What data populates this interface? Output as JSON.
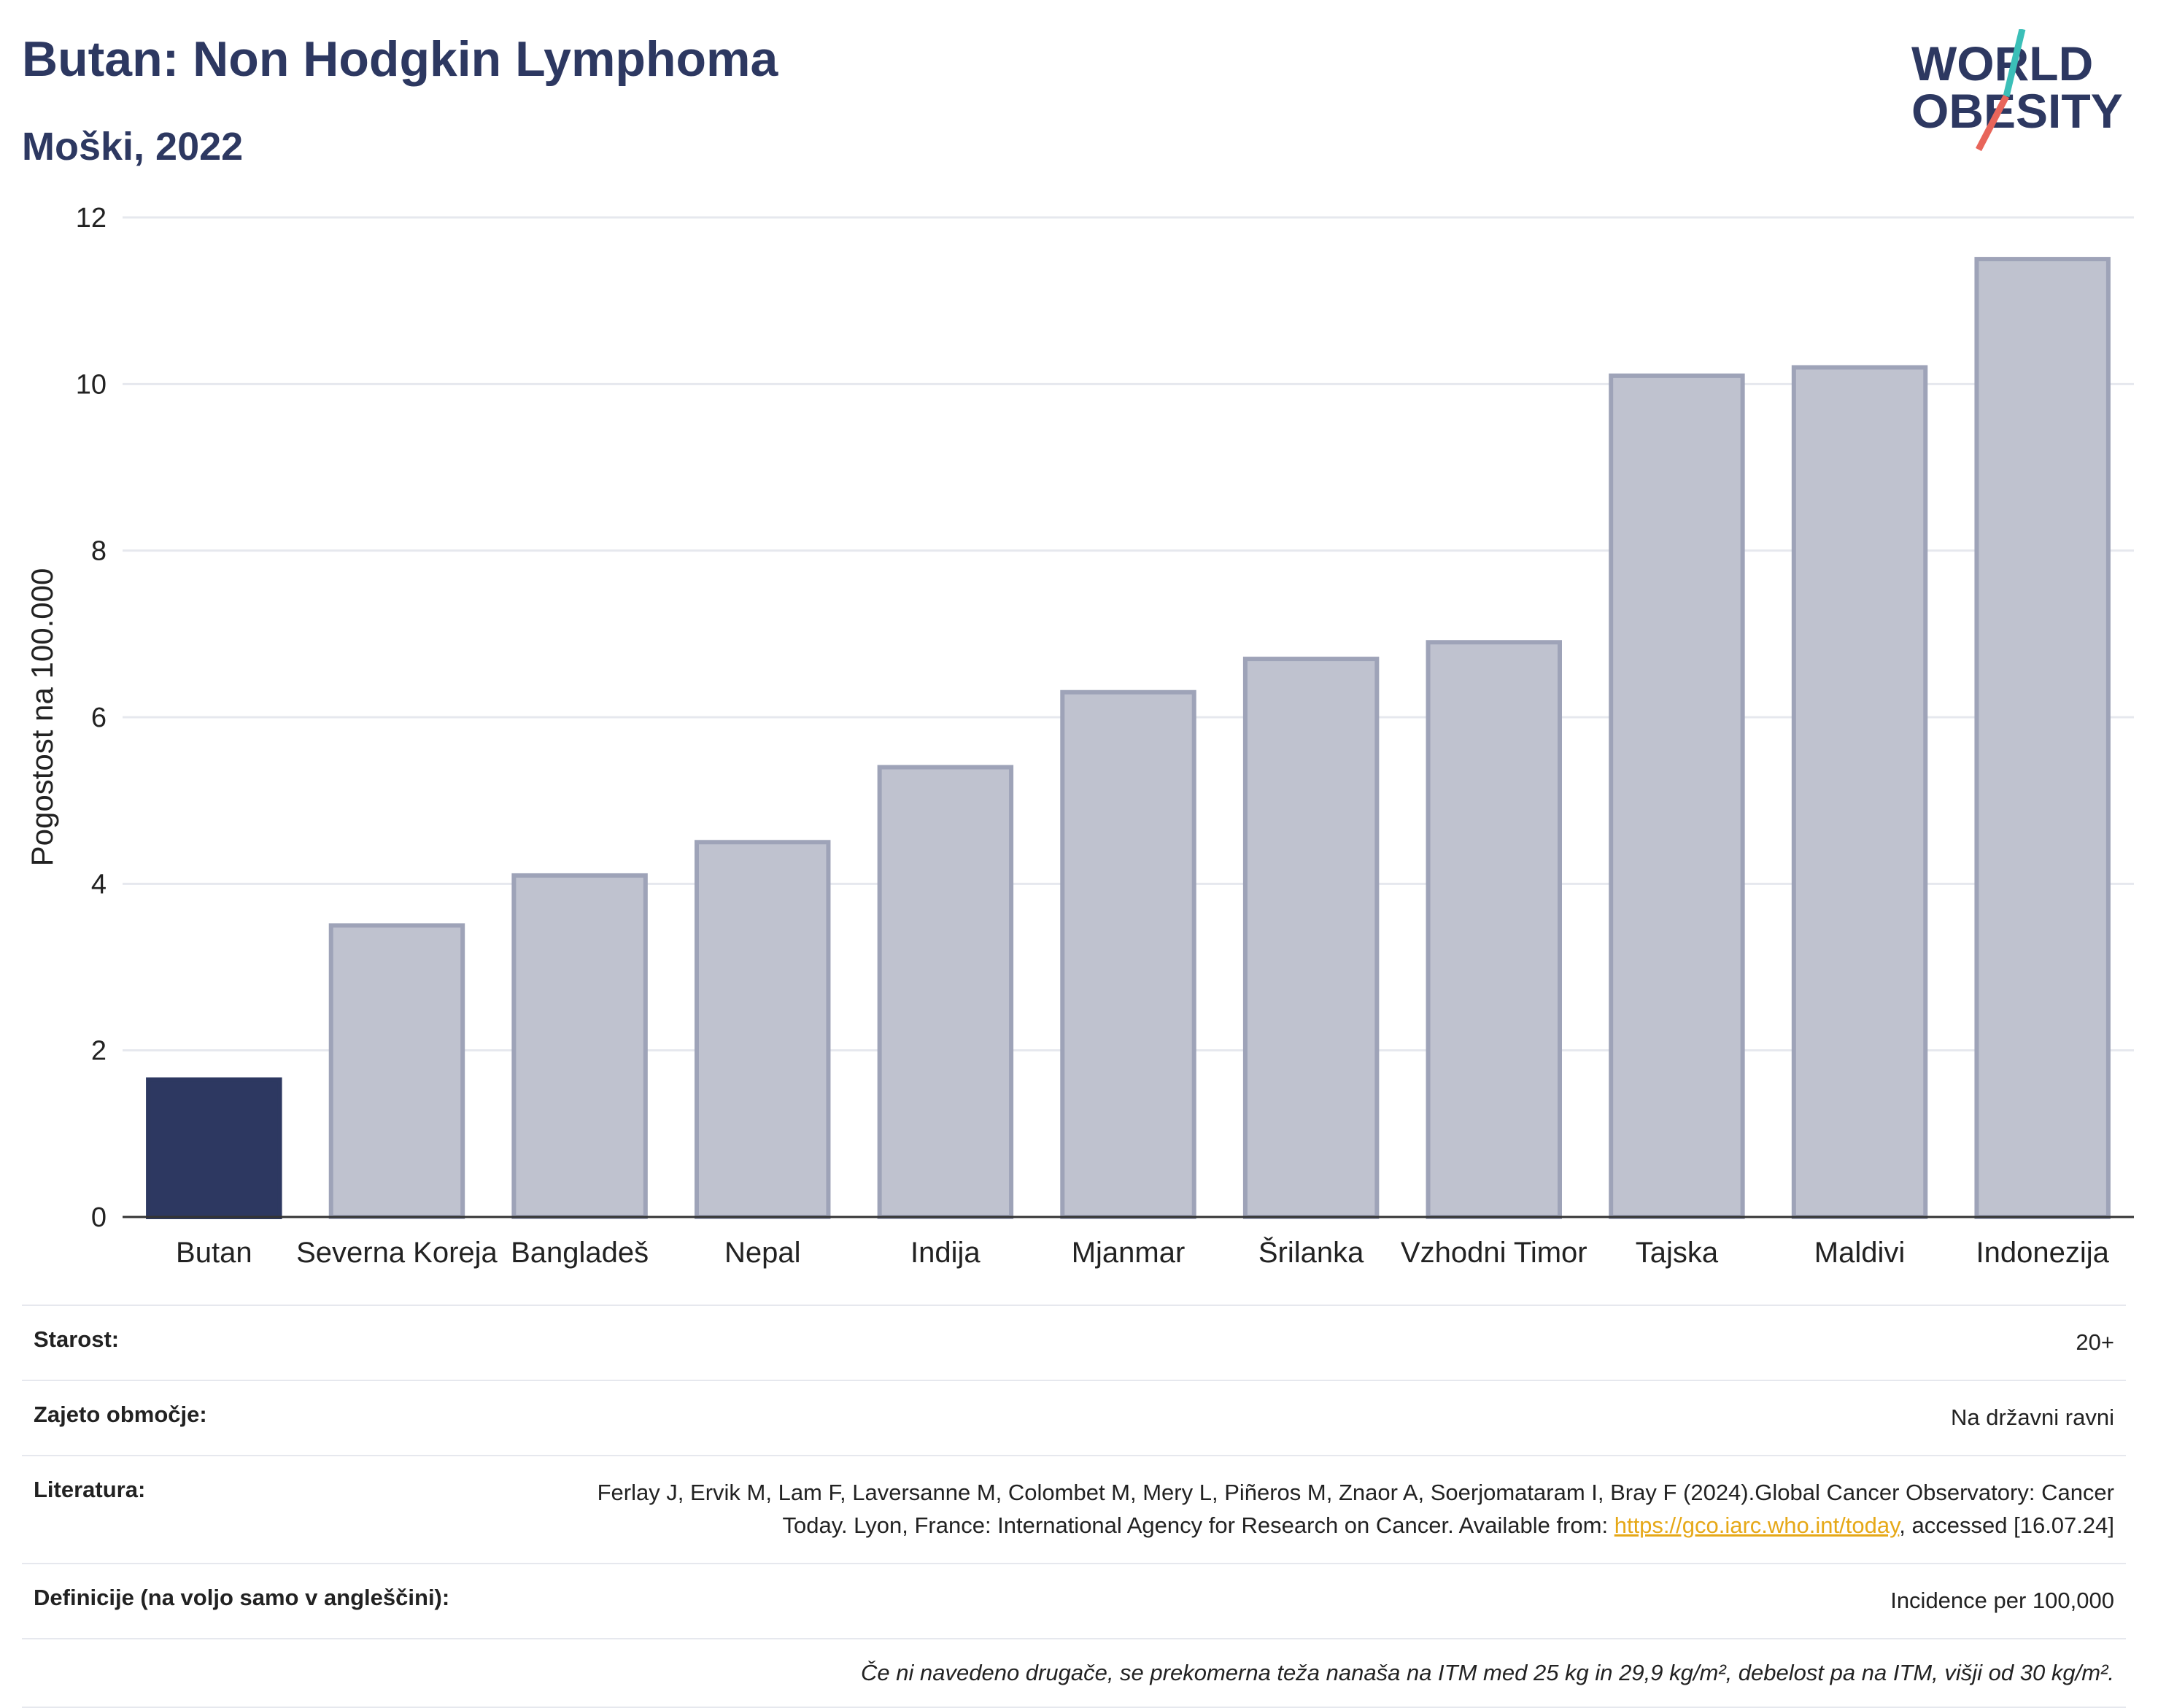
{
  "header": {
    "title": "Butan: Non Hodgkin Lymphoma",
    "subtitle": "Moški, 2022"
  },
  "logo": {
    "line1": "WORLD",
    "line2": "OBESITY"
  },
  "colors": {
    "highlight": "#2d3861",
    "bar": "#bfc2cf",
    "bar_border": "#9ea3b8",
    "accent_teal": "#3bbfb8",
    "accent_red": "#e8655a"
  },
  "chart_data": {
    "type": "bar",
    "categories": [
      "Butan",
      "Severna Koreja",
      "Bangladeš",
      "Nepal",
      "Indija",
      "Mjanmar",
      "Šrilanka",
      "Vzhodni Timor",
      "Tajska",
      "Maldivi",
      "Indonezija"
    ],
    "values": [
      1.65,
      3.5,
      4.1,
      4.5,
      5.4,
      6.3,
      6.7,
      6.9,
      10.1,
      10.2,
      11.5
    ],
    "highlight": "Butan",
    "ylabel": "Pogostost na 100.000",
    "ylim": [
      0,
      12
    ],
    "yticks": [
      0,
      2,
      4,
      6,
      8,
      10,
      12
    ],
    "grid": true
  },
  "info": {
    "age_label": "Starost:",
    "age_value": "20+",
    "coverage_label": "Zajeto območje:",
    "coverage_value": "Na državni ravni",
    "reference_label": "Literatura:",
    "reference_text_1": "Ferlay J, Ervik M, Lam F, Laversanne M, Colombet M, Mery L, Piñeros M, Znaor A, Soerjomataram I, Bray F (2024).Global Cancer Observatory: Cancer Today. Lyon, France: International Agency for Research on Cancer. Available from: ",
    "reference_link": "https://gco.iarc.who.int/today",
    "reference_text_2": ", accessed [16.07.24]",
    "definitions_label": "Definicije (na voljo samo v angleščini):",
    "definitions_value": "Incidence per 100,000",
    "note": "Če ni navedeno drugače, se prekomerna teža nanaša na ITM med 25 kg in 29,9 kg/m², debelost pa na ITM, višji od 30 kg/m²."
  }
}
